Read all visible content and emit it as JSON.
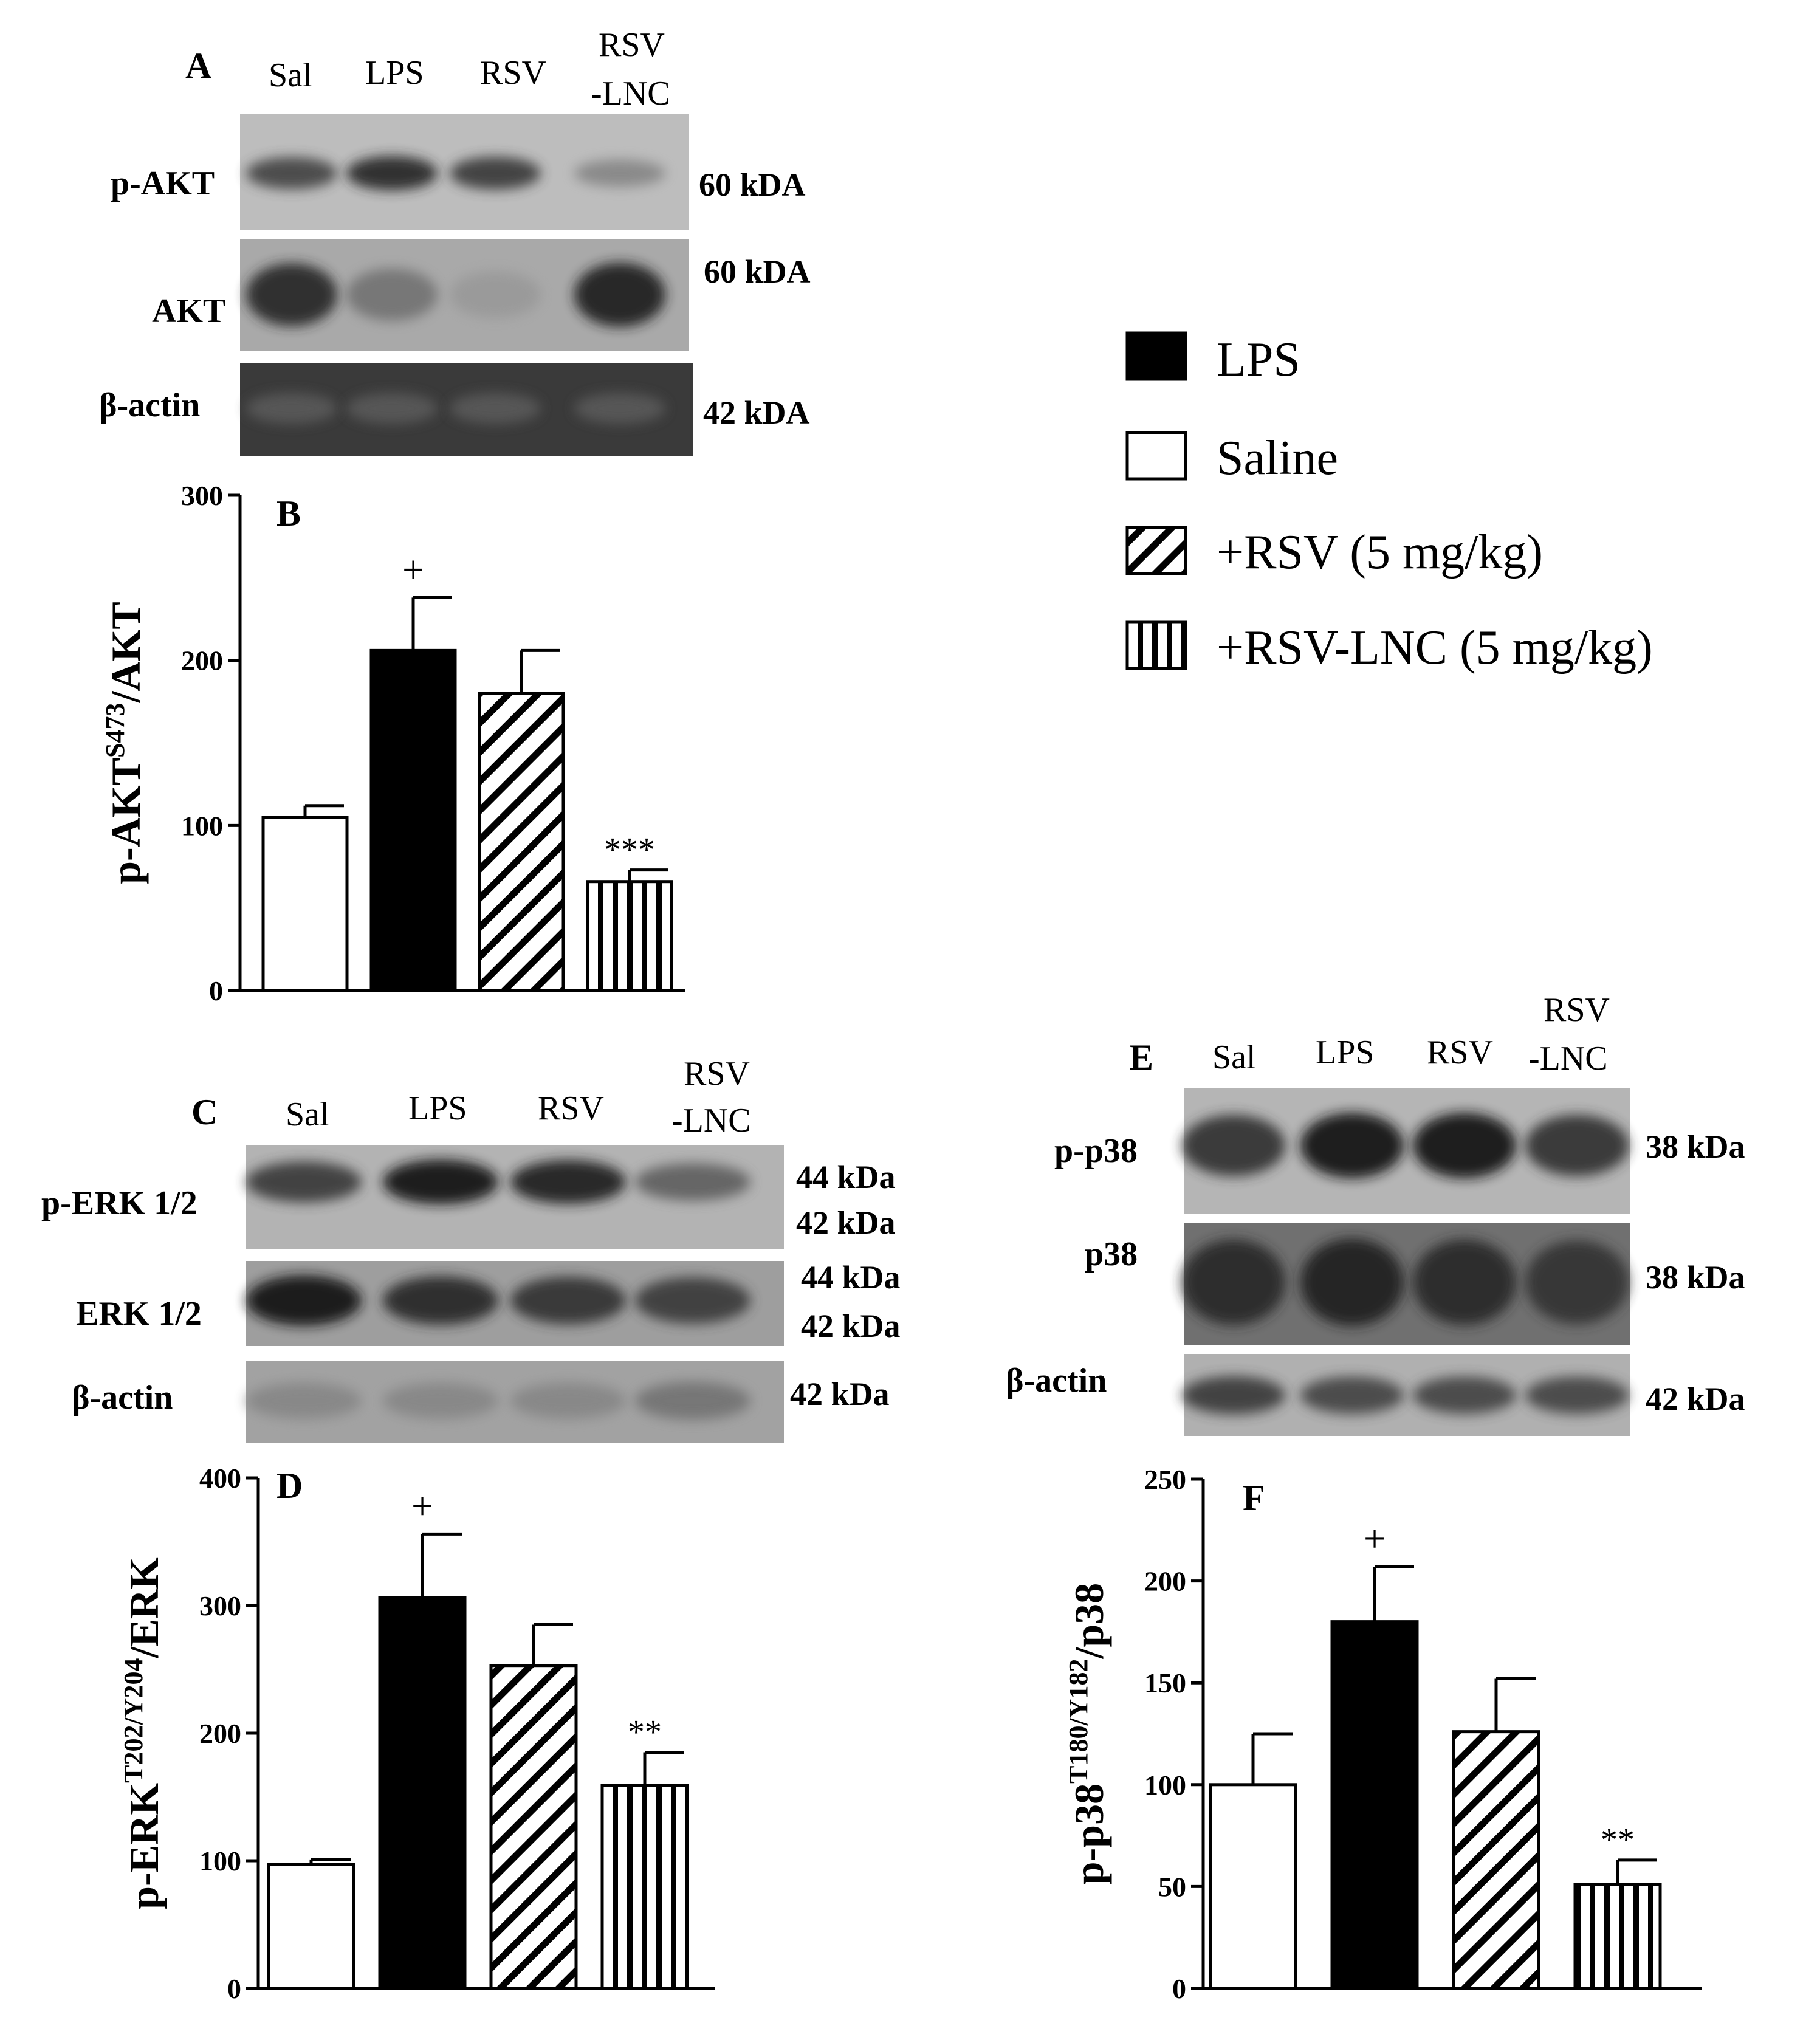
{
  "legend": [
    {
      "label": "LPS",
      "fill": "solid"
    },
    {
      "label": "Saline",
      "fill": "white"
    },
    {
      "label": "+RSV (5 mg/kg)",
      "fill": "diagonal"
    },
    {
      "label": "+RSV-LNC (5 mg/kg)",
      "fill": "vertical"
    }
  ],
  "colors": {
    "ink": "#000000",
    "blot_light": "#bdbdbd",
    "blot_dark": "#1a1a1a",
    "background": "#ffffff"
  },
  "blots": {
    "A": {
      "letter": "A",
      "lanes": [
        "Sal",
        "LPS",
        "RSV",
        "RSV",
        "-LNC"
      ],
      "rows": [
        {
          "label": "p-AKT",
          "kda": "60 kDA",
          "intensity": [
            0.7,
            0.85,
            0.75,
            0.35
          ]
        },
        {
          "label": "AKT",
          "kda": "60 kDA",
          "intensity": [
            0.85,
            0.45,
            0.25,
            0.9
          ]
        },
        {
          "label": "β-actin",
          "kda": "42 kDA",
          "intensity": [
            0.6,
            0.6,
            0.6,
            0.6
          ]
        }
      ]
    },
    "C": {
      "letter": "C",
      "lanes": [
        "Sal",
        "LPS",
        "RSV",
        "RSV",
        "-LNC"
      ],
      "rows": [
        {
          "label": "p-ERK 1/2",
          "kda": "44 kDa",
          "kda2": "42 kDa",
          "intensity": [
            0.75,
            0.95,
            0.9,
            0.55
          ]
        },
        {
          "label": "ERK 1/2",
          "kda": "44 kDa",
          "kda2": "42 kDa",
          "intensity": [
            0.95,
            0.85,
            0.8,
            0.75
          ]
        },
        {
          "label": "β-actin",
          "kda": "42 kDa",
          "intensity": [
            0.35,
            0.35,
            0.35,
            0.45
          ]
        }
      ]
    },
    "E": {
      "letter": "E",
      "lanes": [
        "Sal",
        "LPS",
        "RSV",
        "RSV",
        "-LNC"
      ],
      "rows": [
        {
          "label": "p-p38",
          "kda": "38 kDa",
          "intensity": [
            0.8,
            0.95,
            0.95,
            0.8
          ]
        },
        {
          "label": "p38",
          "kda": "38 kDa",
          "intensity": [
            0.85,
            0.9,
            0.85,
            0.8
          ]
        },
        {
          "label": "β-actin",
          "kda": "42 kDa",
          "intensity": [
            0.75,
            0.7,
            0.7,
            0.7
          ]
        }
      ]
    }
  },
  "chart_data": [
    {
      "type": "bar",
      "panel": "B",
      "ylabel_main": "p-AKT",
      "ylabel_sup": "S473",
      "ylabel_tail": "/AKT",
      "categories": [
        "Saline",
        "LPS",
        "+RSV (5 mg/kg)",
        "+RSV-LNC (5 mg/kg)"
      ],
      "values": [
        105,
        206,
        180,
        66
      ],
      "errors": [
        7,
        32,
        26,
        7
      ],
      "annotations": [
        "",
        "+",
        "",
        "***"
      ],
      "ylim": [
        0,
        300
      ],
      "yticks": [
        "0",
        "100",
        "200",
        "300"
      ]
    },
    {
      "type": "bar",
      "panel": "D",
      "ylabel_main": "p-ERK",
      "ylabel_sup": "T202/Y204",
      "ylabel_tail": "/ERK",
      "categories": [
        "Saline",
        "LPS",
        "+RSV (5 mg/kg)",
        "+RSV-LNC (5 mg/kg)"
      ],
      "values": [
        97,
        306,
        253,
        159
      ],
      "errors": [
        4,
        50,
        32,
        26
      ],
      "annotations": [
        "",
        "+",
        "",
        "**"
      ],
      "ylim": [
        0,
        400
      ],
      "yticks": [
        "0",
        "100",
        "200",
        "300",
        "400"
      ]
    },
    {
      "type": "bar",
      "panel": "F",
      "ylabel_main": "p-p38",
      "ylabel_sup": "T180/Y182",
      "ylabel_tail": "/p38",
      "categories": [
        "Saline",
        "LPS",
        "+RSV (5 mg/kg)",
        "+RSV-LNC (5 mg/kg)"
      ],
      "values": [
        100,
        180,
        126,
        51
      ],
      "errors": [
        25,
        27,
        26,
        12
      ],
      "annotations": [
        "",
        "+",
        "",
        "**"
      ],
      "ylim": [
        0,
        250
      ],
      "yticks": [
        "0",
        "50",
        "100",
        "150",
        "200",
        "250"
      ]
    }
  ]
}
